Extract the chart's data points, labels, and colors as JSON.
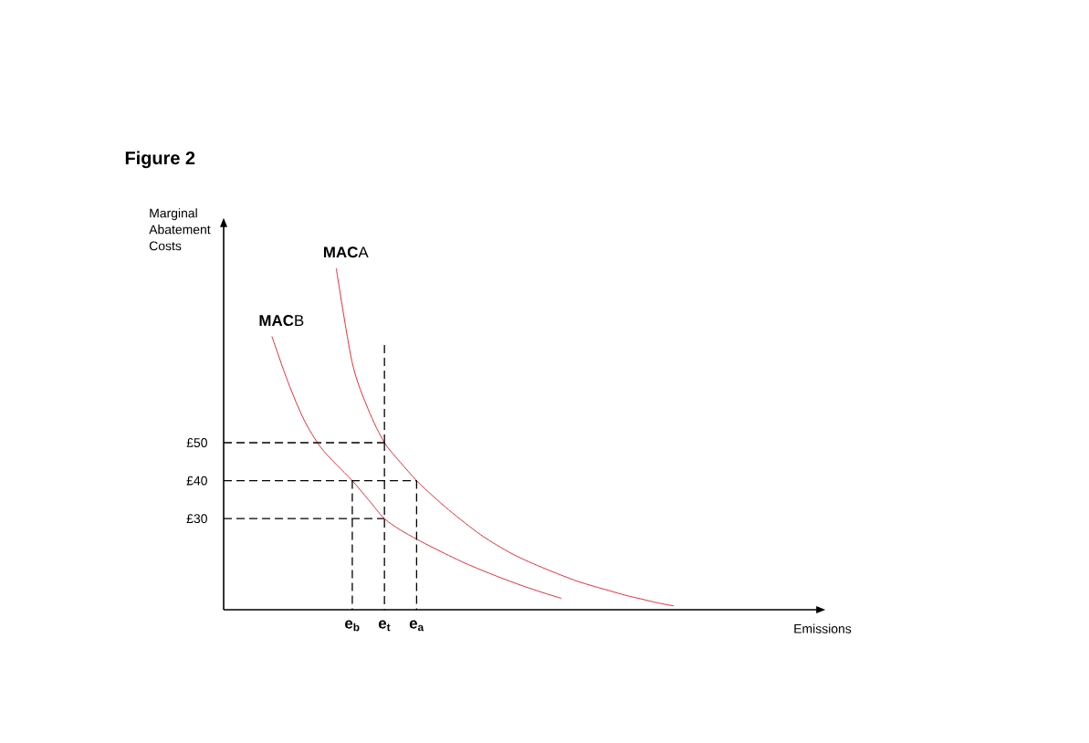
{
  "chart_data": {
    "type": "line",
    "title": "Figure 2",
    "xlabel": "Emissions",
    "ylabel": "Marginal Abatement Costs",
    "categories": [
      null,
      null,
      null,
      null,
      null,
      null,
      null,
      null,
      "e$_{b}$",
      null,
      "e$_{t}$",
      null,
      "e$_{a}$",
      null,
      null,
      null,
      null,
      null,
      null,
      null,
      null,
      null,
      null,
      null,
      null,
      null,
      null,
      null,
      null,
      null,
      null,
      null,
      null,
      null,
      null,
      null,
      null
    ],
    "ylim": [
      6,
      107
    ],
    "yticks": [
      {
        "value": 30,
        "label": "£30"
      },
      {
        "value": 40,
        "label": "£40"
      },
      {
        "value": 50,
        "label": "£50"
      }
    ],
    "series": [
      {
        "name": "**MAC**A",
        "color": "#e0303a",
        "line_style": "solid",
        "values": [
          null,
          null,
          null,
          null,
          null,
          null,
          null,
          96,
          71,
          58.7,
          50,
          44.8,
          40,
          36,
          32.3,
          28.9,
          25.7,
          23,
          20.6,
          18.6,
          16.8,
          15.1,
          13.5,
          12.2,
          11,
          9.8,
          8.8,
          7.8,
          7,
          null,
          null,
          null,
          null,
          null,
          null,
          null,
          null
        ]
      },
      {
        "name": "**MAC**B",
        "color": "#e0303a",
        "line_style": "solid",
        "values": [
          null,
          null,
          null,
          78,
          66,
          56,
          49,
          44.3,
          40,
          35,
          30,
          27,
          24.6,
          22.4,
          20.3,
          18.3,
          16.5,
          14.8,
          13.2,
          11.7,
          10.3,
          9,
          null,
          null,
          null,
          null,
          null,
          null,
          null,
          null,
          null,
          null,
          null,
          null,
          null,
          null,
          null
        ]
      },
      {
        "color": "#000000",
        "line_style": "dashed",
        "values": [
          50,
          50,
          50,
          50,
          50,
          50,
          50,
          50,
          50,
          50,
          50,
          null,
          null,
          null,
          null,
          null,
          null,
          null,
          null,
          null,
          null,
          null,
          null,
          null,
          null,
          null,
          null,
          null,
          null,
          null,
          null,
          null,
          null,
          null,
          null,
          null,
          null
        ],
        "errors": [
          null,
          null,
          null,
          null,
          null,
          null,
          null,
          null,
          null,
          null,
          [
            6,
            76
          ],
          null,
          null,
          null,
          null,
          null,
          null,
          null,
          null,
          null,
          null,
          null,
          null,
          null,
          null,
          null,
          null,
          null,
          null,
          null,
          null,
          null,
          null,
          null,
          null,
          null,
          null
        ]
      },
      {
        "color": "#000000",
        "line_style": "dashed",
        "values": [
          40,
          40,
          40,
          40,
          40,
          40,
          40,
          40,
          40,
          40,
          40,
          40,
          40,
          null,
          null,
          null,
          null,
          null,
          null,
          null,
          null,
          null,
          null,
          null,
          null,
          null,
          null,
          null,
          null,
          null,
          null,
          null,
          null,
          null,
          null,
          null,
          null
        ],
        "errors": [
          null,
          null,
          null,
          null,
          null,
          null,
          null,
          null,
          [
            6,
            40
          ],
          null,
          null,
          null,
          [
            6,
            40
          ],
          null,
          null,
          null,
          null,
          null,
          null,
          null,
          null,
          null,
          null,
          null,
          null,
          null,
          null,
          null,
          null,
          null,
          null,
          null,
          null,
          null,
          null,
          null,
          null
        ]
      },
      {
        "color": "#000000",
        "line_style": "dashed",
        "values": [
          30,
          30,
          30,
          30,
          30,
          30,
          30,
          30,
          30,
          30,
          30,
          null,
          null,
          null,
          null,
          null,
          null,
          null,
          null,
          null,
          null,
          null,
          null,
          null,
          null,
          null,
          null,
          null,
          null,
          null,
          null,
          null,
          null,
          null,
          null,
          null,
          null
        ]
      }
    ]
  }
}
